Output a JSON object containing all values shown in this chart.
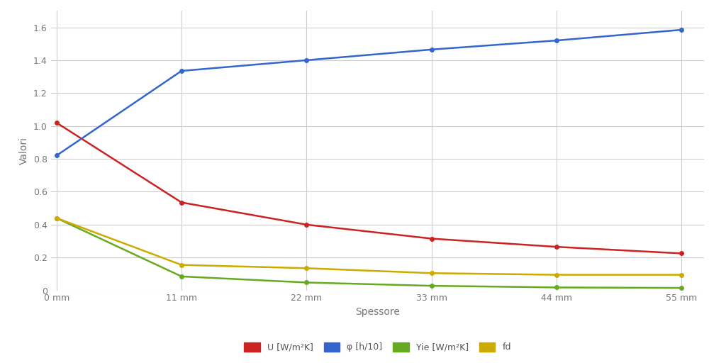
{
  "x_values": [
    0,
    11,
    22,
    33,
    44,
    55
  ],
  "x_labels": [
    "0 mm",
    "11 mm",
    "22 mm",
    "33 mm",
    "44 mm",
    "55 mm"
  ],
  "series": {
    "U": {
      "values": [
        1.02,
        0.535,
        0.4,
        0.315,
        0.265,
        0.225
      ],
      "color": "#cc2222",
      "label": "U [W/m²K]",
      "linewidth": 1.8
    },
    "phi": {
      "values": [
        0.82,
        1.335,
        1.4,
        1.465,
        1.52,
        1.585
      ],
      "color": "#3366cc",
      "label": "φ [h/10]",
      "linewidth": 1.8
    },
    "Yie": {
      "values": [
        0.44,
        0.085,
        0.048,
        0.028,
        0.018,
        0.015
      ],
      "color": "#66aa22",
      "label": "Yie [W/m²K]",
      "linewidth": 1.8
    },
    "fd": {
      "values": [
        0.44,
        0.155,
        0.135,
        0.105,
        0.095,
        0.095
      ],
      "color": "#ccaa00",
      "label": "fd",
      "linewidth": 1.8
    }
  },
  "xlabel": "Spessore",
  "ylabel": "Valori",
  "ylim": [
    0.0,
    1.7
  ],
  "yticks": [
    0.0,
    0.2,
    0.4,
    0.6,
    0.8,
    1.0,
    1.2,
    1.4,
    1.6
  ],
  "background_color": "#ffffff",
  "grid_color": "#cccccc",
  "axis_fontsize": 10,
  "legend_fontsize": 9,
  "marker": "o",
  "marker_size": 4
}
